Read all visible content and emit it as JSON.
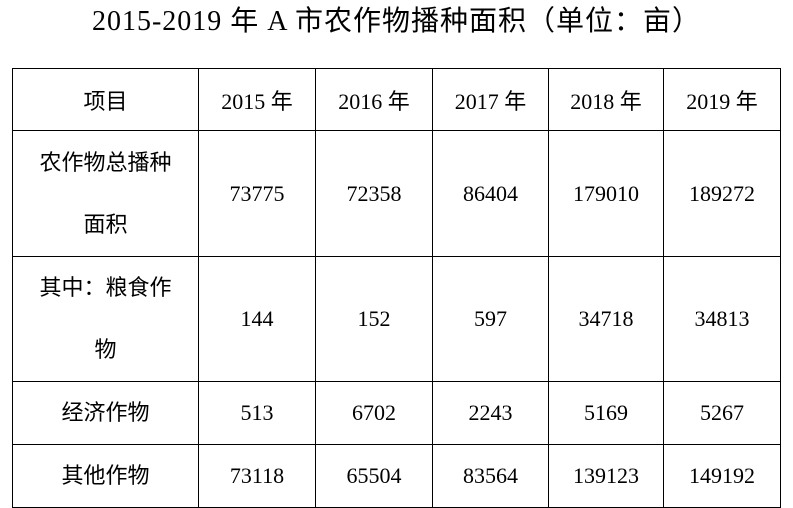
{
  "title": "2015-2019 年 A 市农作物播种面积（单位：亩）",
  "table": {
    "header": [
      "项目",
      "2015 年",
      "2016 年",
      "2017 年",
      "2018 年",
      "2019 年"
    ],
    "rows": [
      [
        "农作物总播种面积",
        73775,
        72358,
        86404,
        179010,
        189272
      ],
      [
        "其中：粮食作物",
        144,
        152,
        597,
        34718,
        34813
      ],
      [
        "经济作物",
        513,
        6702,
        2243,
        5169,
        5267
      ],
      [
        "其他作物",
        73118,
        65504,
        83564,
        139123,
        149192
      ]
    ]
  }
}
